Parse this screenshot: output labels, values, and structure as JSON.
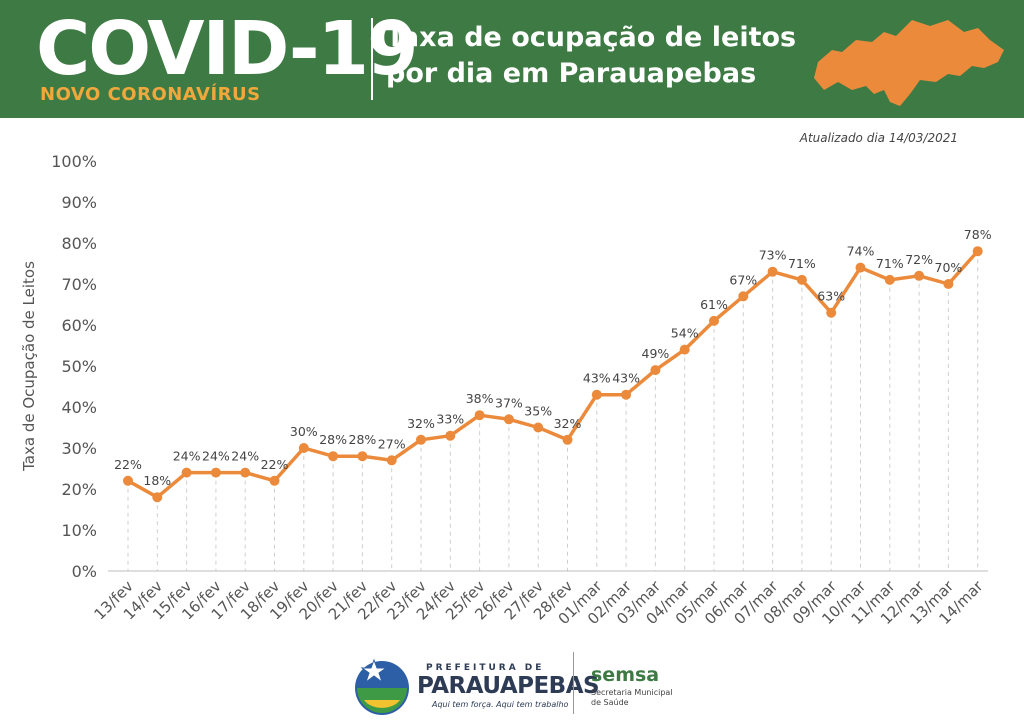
{
  "header": {
    "brand": "COVID-19",
    "brand_sub": "NOVO CORONAVÍRUS",
    "headline_line1": "Taxa de ocupação de leitos",
    "headline_line2": "por dia em Parauapebas",
    "map_icon": "para-state-map-icon"
  },
  "updated": "Atualizado dia 14/03/2021",
  "footer": {
    "pref_small": "PREFEITURA DE",
    "pref_big": "PARAUAPEBAS",
    "pref_slogan": "Aqui tem força. Aqui tem trabalho",
    "semsa": "semsa",
    "semsa_line1": "Secretaria Municipal",
    "semsa_line2": "de Saúde"
  },
  "colors": {
    "banner": "#3e7a44",
    "accent": "#ec8a3c",
    "subtitle": "#f0a83c"
  },
  "chart_data": {
    "type": "line",
    "title": "",
    "xlabel": "",
    "ylabel": "Taxa de Ocupação de Leitos",
    "categories": [
      "13/fev",
      "14/fev",
      "15/fev",
      "16/fev",
      "17/fev",
      "18/fev",
      "19/fev",
      "20/fev",
      "21/fev",
      "22/fev",
      "23/fev",
      "24/fev",
      "25/fev",
      "26/fev",
      "27/fev",
      "28/fev",
      "01/mar",
      "02/mar",
      "03/mar",
      "04/mar",
      "05/mar",
      "06/mar",
      "07/mar",
      "08/mar",
      "09/mar",
      "10/mar",
      "11/mar",
      "12/mar",
      "13/mar",
      "14/mar"
    ],
    "values": [
      22,
      18,
      24,
      24,
      24,
      22,
      30,
      28,
      28,
      27,
      32,
      33,
      38,
      37,
      35,
      32,
      43,
      43,
      49,
      54,
      61,
      67,
      73,
      71,
      63,
      74,
      71,
      72,
      70,
      78
    ],
    "value_labels": [
      "22%",
      "18%",
      "24%",
      "24%",
      "24%",
      "22%",
      "30%",
      "28%",
      "28%",
      "27%",
      "32%",
      "33%",
      "38%",
      "37%",
      "35%",
      "32%",
      "43%",
      "43%",
      "49%",
      "54%",
      "61%",
      "67%",
      "73%",
      "71%",
      "63%",
      "74%",
      "71%",
      "72%",
      "70%",
      "78%"
    ],
    "y_ticks": [
      "0%",
      "10%",
      "20%",
      "30%",
      "40%",
      "50%",
      "60%",
      "70%",
      "80%",
      "90%",
      "100%"
    ],
    "ylim": [
      0,
      100
    ],
    "grid": "vertical dashed",
    "legend": "none"
  }
}
